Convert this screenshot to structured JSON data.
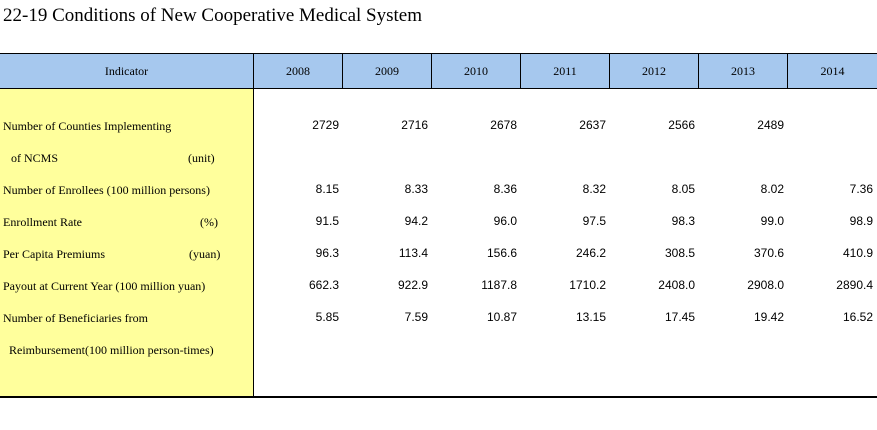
{
  "title": "22-19  Conditions of New Cooperative Medical System",
  "header": {
    "indicator": "Indicator",
    "years": [
      "2008",
      "2009",
      "2010",
      "2011",
      "2012",
      "2013",
      "2014"
    ]
  },
  "rows": [
    {
      "label1": "Number of Counties Implementing",
      "label2": "of NCMS",
      "unit": "(unit)",
      "values": [
        "2729",
        "2716",
        "2678",
        "2637",
        "2566",
        "2489",
        ""
      ]
    },
    {
      "label1": "Number of Enrollees  (100 million persons)",
      "label2": "",
      "unit": "",
      "values": [
        "8.15",
        "8.33",
        "8.36",
        "8.32",
        "8.05",
        "8.02",
        "7.36"
      ]
    },
    {
      "label1": "Enrollment Rate",
      "label2": "",
      "unit": "(%)",
      "values": [
        "91.5",
        "94.2",
        "96.0",
        "97.5",
        "98.3",
        "99.0",
        "98.9"
      ]
    },
    {
      "label1": "Per Capita Premiums",
      "label2": "",
      "unit": "(yuan)",
      "values": [
        "96.3",
        "113.4",
        "156.6",
        "246.2",
        "308.5",
        "370.6",
        "410.9"
      ]
    },
    {
      "label1": "Payout at Current Year  (100 million yuan)",
      "label2": "",
      "unit": "",
      "values": [
        "662.3",
        "922.9",
        "1187.8",
        "1710.2",
        "2408.0",
        "2908.0",
        "2890.4"
      ]
    },
    {
      "label1": "Number of Beneficiaries from",
      "label2": "Reimbursement(100 million person-times)",
      "unit": "",
      "values": [
        "5.85",
        "7.59",
        "10.87",
        "13.15",
        "17.45",
        "19.42",
        "16.52"
      ]
    }
  ]
}
